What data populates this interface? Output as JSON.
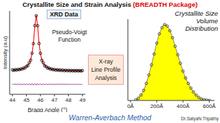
{
  "title": "Crystallite Size and Strain Analysis",
  "subtitle": "(BREADTH Package)",
  "footer": "Warren-Averbach Method",
  "credit": "Dr.SatyaN.Tripathy",
  "chart_data": [
    {
      "type": "line",
      "annotations": [
        [
          "XRD Data"
        ],
        [
          "Pseudo-Voigt",
          "Function"
        ],
        [
          "X-ray",
          "Line Profile",
          "Analysis"
        ]
      ],
      "x_label": "Bragg Angle (°)",
      "y_label": "Intensity (a.u)",
      "x": [
        44.0,
        44.1,
        44.2,
        44.3,
        44.4,
        44.5,
        44.6,
        44.7,
        44.8,
        44.9,
        45.0,
        45.1,
        45.2,
        45.3,
        45.4,
        45.5,
        45.6,
        45.7,
        45.8,
        45.9,
        46.0,
        46.1,
        46.2,
        46.3,
        46.4,
        46.5,
        46.6,
        46.7,
        46.8,
        46.9,
        47.0,
        47.1,
        47.2,
        47.3,
        47.4,
        47.5,
        47.6,
        47.7,
        47.8,
        47.9,
        48.0,
        48.1,
        48.2,
        48.3,
        48.4,
        48.5,
        48.6,
        48.7,
        48.8,
        48.9,
        49.0
      ],
      "series": [
        {
          "type": "scatter",
          "color": "#000000",
          "marker": "circle",
          "values": [
            29.3,
            28.7,
            29.6,
            29.0,
            29.9,
            29.5,
            30.5,
            30.2,
            31.6,
            31.5,
            33.6,
            34.3,
            37.8,
            40.9,
            49.3,
            60.8,
            82.4,
            94.3,
            82.3,
            60.9,
            49.2,
            40.8,
            37.7,
            34.2,
            33.5,
            31.5,
            31.6,
            30.2,
            30.5,
            29.4,
            29.9,
            28.9,
            29.6,
            28.7,
            29.3,
            28.5,
            29.1,
            28.3,
            28.9,
            28.2,
            28.8,
            28.1,
            28.7,
            28.1,
            28.6,
            28.0,
            28.6,
            28.0,
            28.5,
            27.9,
            28.5
          ]
        },
        {
          "type": "line",
          "color": "#ff0000",
          "line_style": "solid",
          "values": [
            28.9,
            29.0,
            29.2,
            29.3,
            29.5,
            29.8,
            30.1,
            30.6,
            31.2,
            31.9,
            33.1,
            34.7,
            37.2,
            41.4,
            48.6,
            61.5,
            81.6,
            95,
            81.6,
            61.5,
            48.6,
            41.4,
            37.2,
            34.7,
            33.1,
            31.9,
            31.2,
            30.6,
            30.1,
            29.8,
            29.5,
            29.3,
            29.2,
            29.0,
            28.9,
            28.8,
            28.7,
            28.6,
            28.6,
            28.5,
            28.5,
            28.4,
            28.4,
            28.4,
            28.3,
            28.3,
            28.3,
            28.3,
            28.2,
            28.2,
            28.2
          ]
        },
        {
          "type": "line",
          "color": "#b36bb3",
          "line_style": "solid",
          "values": [
            12.4,
            11.7,
            12.4,
            11.7,
            12.4,
            11.7,
            12.4,
            11.6,
            12.4,
            11.6,
            12.5,
            11.6,
            12.6,
            11.5,
            12.7,
            11.3,
            12.8,
            11.3,
            12.7,
            11.4,
            12.6,
            11.4,
            12.5,
            11.5,
            12.4,
            11.6,
            12.4,
            11.6,
            12.4,
            11.6,
            12.4,
            11.6,
            12.4,
            11.7,
            12.4,
            11.7,
            12.4,
            11.7,
            12.4,
            11.7,
            12.3,
            11.7,
            12.3,
            11.7,
            12.3,
            11.7,
            12.3,
            11.7,
            12.3,
            11.7,
            12.3
          ]
        }
      ],
      "xlim": [
        43.8,
        49.2
      ],
      "xticks": [
        44,
        45,
        46,
        47,
        48,
        49
      ],
      "ylim": [
        0,
        100
      ],
      "tick_labels": "x"
    },
    {
      "type": "area",
      "annotations": [
        [
          "Crystallite Size",
          "Volume",
          "Distribution"
        ]
      ],
      "x": [
        40,
        60,
        80,
        100,
        120,
        140,
        160,
        180,
        200,
        220,
        240,
        260,
        280,
        300,
        320,
        340,
        360,
        380,
        400,
        420,
        440,
        460,
        480,
        500,
        520,
        540,
        560,
        580,
        600
      ],
      "series": [
        {
          "type": "area",
          "color": "#ffff00",
          "marker": "circle",
          "values": [
            1,
            3,
            7,
            13,
            22,
            33,
            46,
            60,
            74,
            86,
            94,
            98,
            96,
            90,
            81,
            70,
            59,
            48,
            38,
            29,
            22,
            16,
            11,
            7,
            4,
            2,
            1,
            0.5,
            0
          ]
        }
      ],
      "xlim": [
        -20,
        640
      ],
      "xticks": [
        {
          "value": 0,
          "label": "0Å"
        },
        {
          "value": 200,
          "label": "200Å"
        },
        {
          "value": 400,
          "label": "400Å"
        },
        {
          "value": 600,
          "label": "600Å"
        }
      ],
      "ylim": [
        0,
        105
      ],
      "tick_labels": "x"
    }
  ]
}
